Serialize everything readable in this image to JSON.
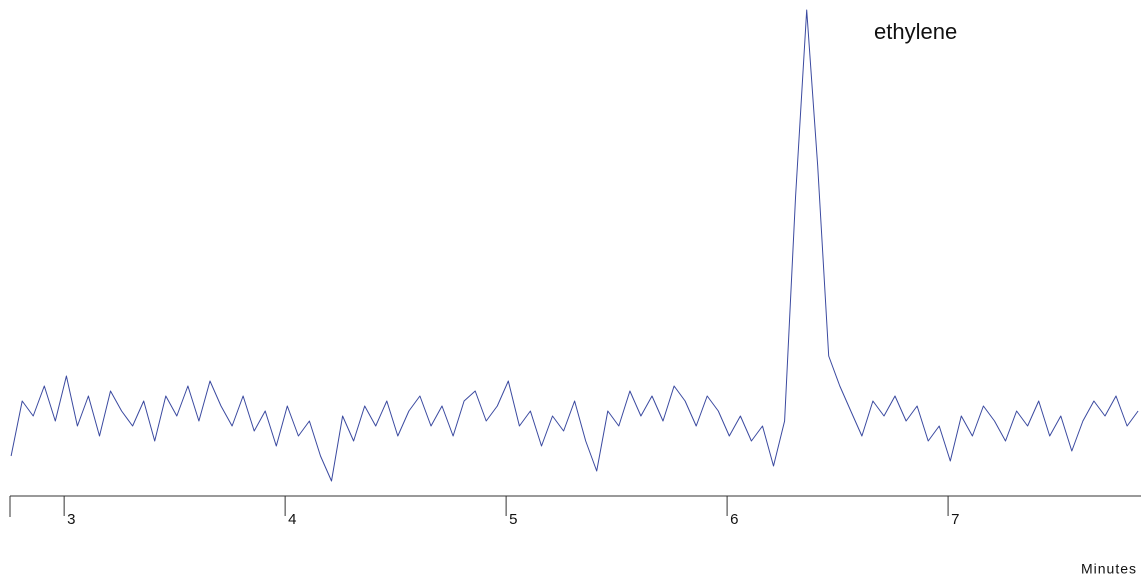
{
  "chart_data": {
    "type": "line",
    "annotation": "ethylene",
    "x_label": "Minutes",
    "xlim": [
      2.755,
      7.873
    ],
    "xticks": [
      3,
      4,
      5,
      6,
      7
    ],
    "ylim": [
      0,
      496
    ],
    "series": [
      {
        "color": "#3b4aa0",
        "x": [
          2.76,
          2.81,
          2.86,
          2.91,
          2.96,
          3.01,
          3.06,
          3.11,
          3.16,
          3.21,
          3.26,
          3.31,
          3.36,
          3.41,
          3.46,
          3.51,
          3.56,
          3.61,
          3.66,
          3.71,
          3.76,
          3.81,
          3.86,
          3.91,
          3.96,
          4.01,
          4.06,
          4.11,
          4.16,
          4.21,
          4.26,
          4.31,
          4.36,
          4.41,
          4.46,
          4.51,
          4.56,
          4.61,
          4.66,
          4.71,
          4.76,
          4.81,
          4.86,
          4.91,
          4.96,
          5.01,
          5.06,
          5.11,
          5.16,
          5.21,
          5.26,
          5.31,
          5.36,
          5.41,
          5.46,
          5.51,
          5.56,
          5.61,
          5.66,
          5.71,
          5.76,
          5.81,
          5.86,
          5.91,
          5.96,
          6.01,
          6.06,
          6.11,
          6.16,
          6.21,
          6.26,
          6.31,
          6.36,
          6.41,
          6.46,
          6.51,
          6.56,
          6.61,
          6.66,
          6.71,
          6.76,
          6.81,
          6.86,
          6.91,
          6.96,
          7.01,
          7.06,
          7.11,
          7.16,
          7.21,
          7.26,
          7.31,
          7.36,
          7.41,
          7.46,
          7.51,
          7.56,
          7.61,
          7.66,
          7.71,
          7.76,
          7.81,
          7.86
        ],
        "values": [
          40,
          95,
          80,
          110,
          75,
          120,
          70,
          100,
          60,
          105,
          85,
          70,
          95,
          55,
          100,
          80,
          110,
          75,
          115,
          90,
          70,
          100,
          65,
          85,
          50,
          90,
          60,
          75,
          40,
          15,
          80,
          55,
          90,
          70,
          95,
          60,
          85,
          100,
          70,
          90,
          60,
          95,
          105,
          75,
          90,
          115,
          70,
          85,
          50,
          80,
          65,
          95,
          55,
          25,
          85,
          70,
          105,
          80,
          100,
          75,
          110,
          95,
          70,
          100,
          85,
          60,
          80,
          55,
          70,
          30,
          75,
          300,
          486,
          330,
          140,
          110,
          85,
          60,
          95,
          80,
          100,
          75,
          90,
          55,
          70,
          35,
          80,
          60,
          90,
          75,
          55,
          85,
          70,
          95,
          60,
          80,
          45,
          75,
          95,
          80,
          100,
          70,
          85
        ]
      }
    ]
  }
}
